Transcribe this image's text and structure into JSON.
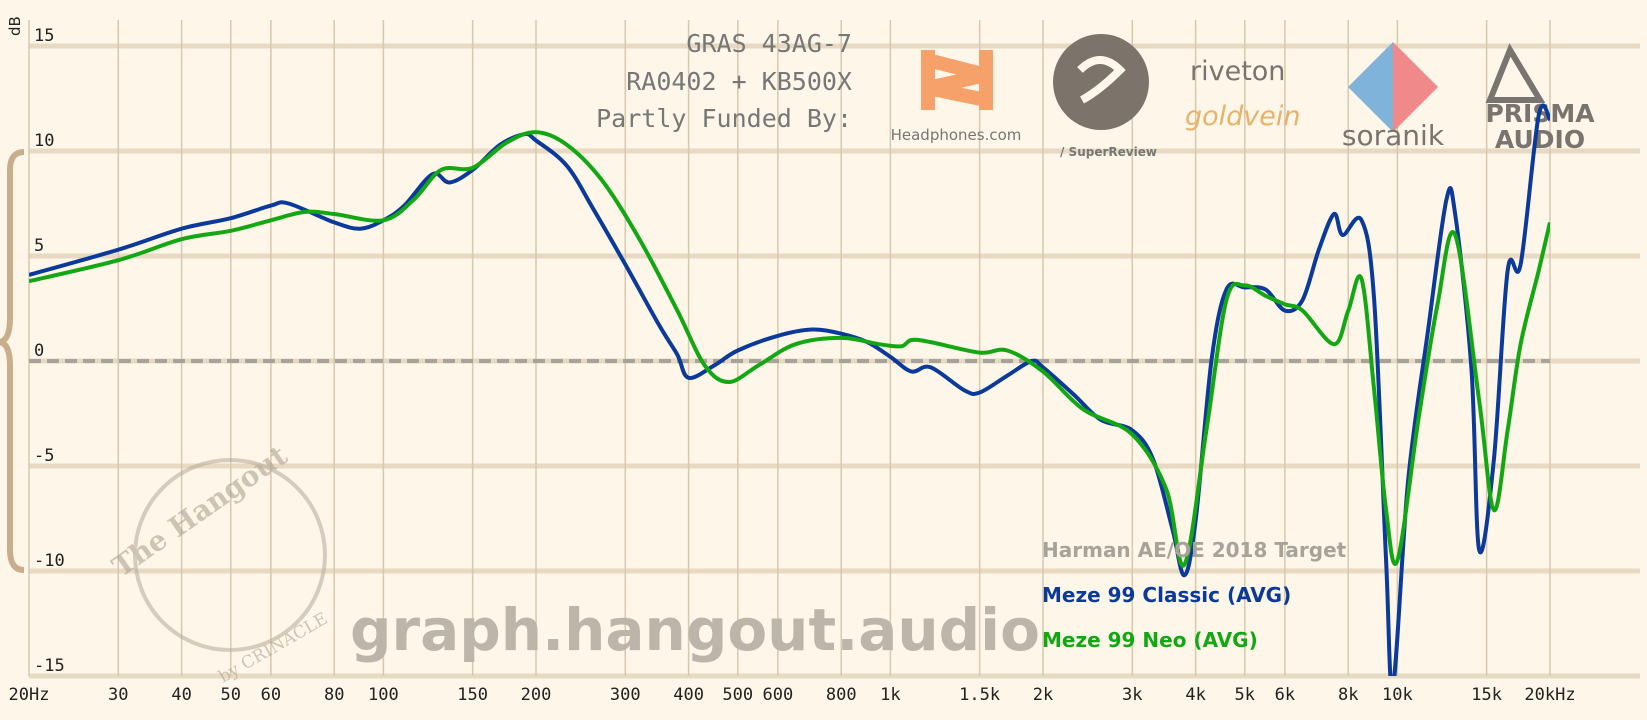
{
  "chart_data": {
    "type": "line",
    "x_scale": "log",
    "y_label": "dB",
    "header": [
      "GRAS 43AG-7",
      "RA0402 + KB500X",
      "Partly Funded By:"
    ],
    "sponsors": [
      "Headphones.com",
      "/ SuperReview",
      "riveton",
      "goldvein",
      "soranik",
      "PRISMA",
      "AUDIO"
    ],
    "watermark": "graph.hangout.audio",
    "badge": [
      "The Hangout",
      "by CRINACLE"
    ],
    "xlim": [
      20,
      20000
    ],
    "ylim": [
      -15,
      15
    ],
    "xticks": [
      {
        "value": 20,
        "label": "20Hz"
      },
      30,
      40,
      50,
      60,
      80,
      100,
      150,
      200,
      300,
      400,
      500,
      600,
      800,
      {
        "value": 1000,
        "label": "1k"
      },
      {
        "value": 1500,
        "label": "1.5k"
      },
      {
        "value": 2000,
        "label": "2k"
      },
      {
        "value": 3000,
        "label": "3k"
      },
      {
        "value": 4000,
        "label": "4k"
      },
      {
        "value": 5000,
        "label": "5k"
      },
      {
        "value": 6000,
        "label": "6k"
      },
      {
        "value": 8000,
        "label": "8k"
      },
      {
        "value": 10000,
        "label": "10k"
      },
      {
        "value": 15000,
        "label": "15k"
      },
      {
        "value": 20000,
        "label": "20kHz"
      }
    ],
    "yticks": [
      15,
      10,
      5,
      0,
      -5,
      -10,
      -15
    ],
    "grid": true,
    "series": [
      {
        "name": "Harman AE/OE 2018 Target",
        "color": "#a8a39a",
        "dashed": true,
        "x": [
          20,
          20000
        ],
        "values": [
          0,
          0
        ]
      },
      {
        "name": "Meze 99 Classic (AVG)",
        "color": "#0b3a9a",
        "x": [
          20,
          30,
          40,
          50,
          60,
          65,
          80,
          90,
          100,
          110,
          125,
          135,
          150,
          170,
          190,
          200,
          230,
          260,
          300,
          350,
          380,
          400,
          450,
          500,
          600,
          700,
          800,
          900,
          1000,
          1100,
          1200,
          1400,
          1500,
          1700,
          1900,
          2000,
          2300,
          2600,
          3000,
          3300,
          3600,
          3800,
          4000,
          4300,
          4600,
          5000,
          5500,
          6000,
          6500,
          7000,
          7500,
          7800,
          8500,
          9000,
          9500,
          9800,
          10500,
          11500,
          12500,
          13000,
          14000,
          14500,
          15500,
          16500,
          17500,
          19000,
          20000
        ],
        "values": [
          4.1,
          5.3,
          6.3,
          6.8,
          7.4,
          7.5,
          6.6,
          6.3,
          6.7,
          7.4,
          8.9,
          8.5,
          9.1,
          10.3,
          10.8,
          10.5,
          9.3,
          7.2,
          4.6,
          1.7,
          0.3,
          -0.8,
          -0.2,
          0.5,
          1.2,
          1.5,
          1.3,
          0.9,
          0.2,
          -0.5,
          -0.3,
          -1.4,
          -1.5,
          -0.7,
          0,
          -0.3,
          -1.6,
          -2.8,
          -3.3,
          -4.7,
          -8.0,
          -10.2,
          -7.6,
          0.05,
          3.4,
          3.5,
          3.4,
          2.4,
          2.9,
          5.3,
          7.0,
          6.0,
          6.7,
          2.9,
          -9.5,
          -15.5,
          -5.7,
          1.5,
          7.7,
          7.0,
          -0.4,
          -9.0,
          -4.7,
          4.3,
          4.6,
          11.7,
          11.5
        ]
      },
      {
        "name": "Meze 99 Neo (AVG)",
        "color": "#13a813",
        "x": [
          20,
          30,
          40,
          50,
          60,
          70,
          80,
          100,
          115,
          130,
          150,
          175,
          200,
          230,
          270,
          320,
          380,
          430,
          480,
          550,
          650,
          800,
          950,
          1050,
          1100,
          1200,
          1500,
          1700,
          2000,
          2400,
          3000,
          3500,
          3800,
          4200,
          4600,
          5000,
          5500,
          6000,
          6500,
          7500,
          8000,
          8500,
          9000,
          9500,
          10000,
          11000,
          12000,
          13000,
          14500,
          15500,
          16500,
          17500,
          19000,
          20000
        ],
        "values": [
          3.8,
          4.8,
          5.8,
          6.2,
          6.7,
          7.1,
          7.0,
          6.7,
          7.7,
          9.1,
          9.2,
          10.4,
          10.9,
          10.3,
          8.6,
          5.8,
          2.4,
          -0.2,
          -1.0,
          -0.2,
          0.8,
          1.1,
          0.8,
          0.7,
          1.0,
          0.9,
          0.4,
          0.5,
          -0.5,
          -2.3,
          -3.5,
          -6.1,
          -9.7,
          -3.3,
          2.9,
          3.6,
          3.1,
          2.7,
          2.4,
          0.8,
          2.4,
          3.9,
          -1.4,
          -7.1,
          -9.5,
          -2.8,
          2.7,
          6.0,
          -1.9,
          -7.1,
          -3.3,
          0.8,
          4.3,
          6.6
        ]
      }
    ]
  }
}
